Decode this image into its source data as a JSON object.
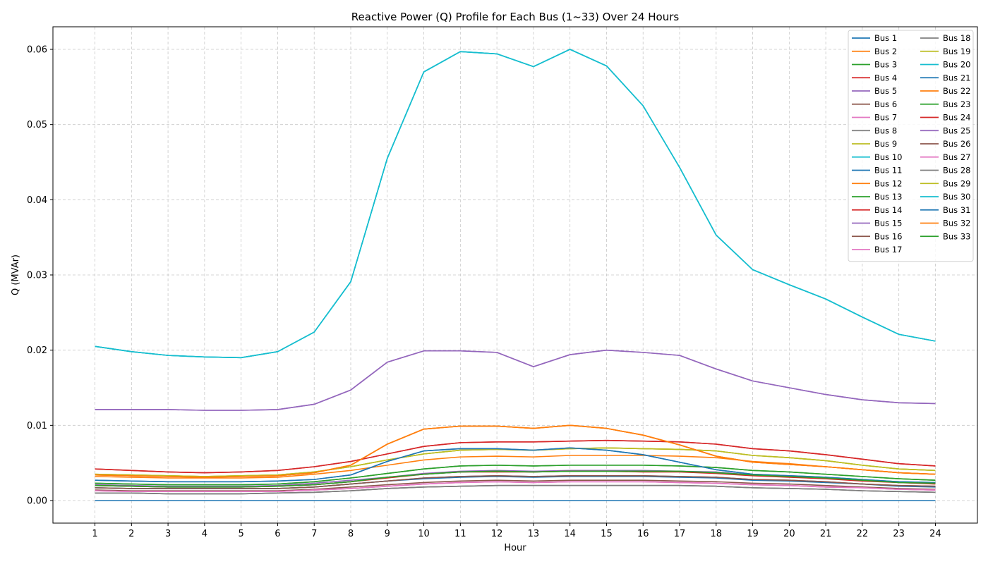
{
  "chart_data": {
    "type": "line",
    "title": "Reactive Power (Q) Profile for Each Bus (1~33) Over 24 Hours",
    "xlabel": "Hour",
    "ylabel": "Q (MVAr)",
    "x": [
      1,
      2,
      3,
      4,
      5,
      6,
      7,
      8,
      9,
      10,
      11,
      12,
      13,
      14,
      15,
      16,
      17,
      18,
      19,
      20,
      21,
      22,
      23,
      24
    ],
    "x_ticks": [
      "1",
      "2",
      "3",
      "4",
      "5",
      "6",
      "7",
      "8",
      "9",
      "10",
      "11",
      "12",
      "13",
      "14",
      "15",
      "16",
      "17",
      "18",
      "19",
      "20",
      "21",
      "22",
      "23",
      "24"
    ],
    "xlim": [
      -0.15,
      25.15
    ],
    "ylim": [
      -0.003,
      0.063
    ],
    "y_ticks": [
      0.0,
      0.01,
      0.02,
      0.03,
      0.04,
      0.05,
      0.06
    ],
    "y_tick_labels": [
      "0.00",
      "0.01",
      "0.02",
      "0.03",
      "0.04",
      "0.05",
      "0.06"
    ],
    "grid": true,
    "legend_position": "top-right",
    "legend_columns": 2,
    "series": [
      {
        "name": "Bus 1",
        "color": "#1f77b4",
        "values": [
          0,
          0,
          0,
          0,
          0,
          0,
          0,
          0,
          0,
          0,
          0,
          0,
          0,
          0,
          0,
          0,
          0,
          0,
          0,
          0,
          0,
          0,
          0,
          0
        ]
      },
      {
        "name": "Bus 2",
        "color": "#ff7f0e",
        "values": [
          0.0032,
          0.0031,
          0.003,
          0.003,
          0.003,
          0.0031,
          0.0035,
          0.004,
          0.0047,
          0.0054,
          0.0058,
          0.0059,
          0.0058,
          0.006,
          0.006,
          0.006,
          0.0059,
          0.0057,
          0.0052,
          0.0049,
          0.0045,
          0.0041,
          0.0037,
          0.0035
        ]
      },
      {
        "name": "Bus 3",
        "color": "#2ca02c",
        "values": [
          0.0023,
          0.0022,
          0.0021,
          0.0021,
          0.0021,
          0.0022,
          0.0025,
          0.003,
          0.0036,
          0.0042,
          0.0046,
          0.0047,
          0.0046,
          0.0047,
          0.0047,
          0.0047,
          0.0046,
          0.0044,
          0.004,
          0.0038,
          0.0035,
          0.0032,
          0.0029,
          0.0027
        ]
      },
      {
        "name": "Bus 4",
        "color": "#d62728",
        "values": [
          0.0042,
          0.004,
          0.0038,
          0.0037,
          0.0038,
          0.004,
          0.0045,
          0.0052,
          0.0062,
          0.0072,
          0.0077,
          0.0078,
          0.0078,
          0.0079,
          0.008,
          0.0079,
          0.0078,
          0.0075,
          0.0069,
          0.0066,
          0.0061,
          0.0055,
          0.0049,
          0.0046
        ]
      },
      {
        "name": "Bus 5",
        "color": "#9467bd",
        "values": [
          0.0021,
          0.002,
          0.0019,
          0.0019,
          0.0019,
          0.002,
          0.0023,
          0.0027,
          0.0031,
          0.0036,
          0.0039,
          0.004,
          0.0039,
          0.004,
          0.004,
          0.004,
          0.0039,
          0.0038,
          0.0034,
          0.0032,
          0.003,
          0.0027,
          0.0024,
          0.0023
        ]
      },
      {
        "name": "Bus 6",
        "color": "#8c564b",
        "values": [
          0.0014,
          0.0013,
          0.0013,
          0.0013,
          0.0013,
          0.0013,
          0.0015,
          0.0018,
          0.0021,
          0.0024,
          0.0026,
          0.0027,
          0.0026,
          0.0027,
          0.0027,
          0.0027,
          0.0026,
          0.0025,
          0.0023,
          0.0022,
          0.002,
          0.0018,
          0.0016,
          0.0015
        ]
      },
      {
        "name": "Bus 7",
        "color": "#e377c2",
        "values": [
          0.0013,
          0.0012,
          0.0012,
          0.0012,
          0.0012,
          0.0012,
          0.0014,
          0.0016,
          0.0019,
          0.0022,
          0.0024,
          0.0025,
          0.0024,
          0.0025,
          0.0025,
          0.0025,
          0.0024,
          0.0023,
          0.0021,
          0.002,
          0.0018,
          0.0017,
          0.0015,
          0.0014
        ]
      },
      {
        "name": "Bus 8",
        "color": "#7f7f7f",
        "values": [
          0.001,
          0.001,
          0.0009,
          0.0009,
          0.0009,
          0.001,
          0.0011,
          0.0013,
          0.0016,
          0.0018,
          0.0019,
          0.002,
          0.002,
          0.002,
          0.002,
          0.002,
          0.002,
          0.0019,
          0.0017,
          0.0016,
          0.0015,
          0.0013,
          0.0012,
          0.0011
        ]
      },
      {
        "name": "Bus 9",
        "color": "#bcbd22",
        "values": [
          0.0035,
          0.0034,
          0.0033,
          0.0032,
          0.0033,
          0.0034,
          0.0038,
          0.0045,
          0.0054,
          0.0062,
          0.0067,
          0.0068,
          0.0067,
          0.0069,
          0.007,
          0.0069,
          0.0068,
          0.0066,
          0.006,
          0.0057,
          0.0053,
          0.0047,
          0.0042,
          0.004
        ]
      },
      {
        "name": "Bus 10",
        "color": "#17becf",
        "values": [
          0.0205,
          0.0198,
          0.0193,
          0.0191,
          0.019,
          0.0198,
          0.0224,
          0.0291,
          0.0455,
          0.057,
          0.0597,
          0.0594,
          0.0577,
          0.06,
          0.0578,
          0.0525,
          0.0443,
          0.0353,
          0.0307,
          0.0287,
          0.0268,
          0.0244,
          0.0221,
          0.0212
        ]
      },
      {
        "name": "Bus 11",
        "color": "#1f77b4",
        "values": [
          0.0027,
          0.0026,
          0.0025,
          0.0025,
          0.0025,
          0.0026,
          0.0028,
          0.0034,
          0.0052,
          0.0066,
          0.0069,
          0.0069,
          0.0067,
          0.007,
          0.0067,
          0.0061,
          0.0051,
          0.0041,
          0.0035,
          0.0033,
          0.0031,
          0.0028,
          0.0025,
          0.0024
        ]
      },
      {
        "name": "Bus 12",
        "color": "#ff7f0e",
        "values": [
          0.0034,
          0.0033,
          0.0032,
          0.0031,
          0.0032,
          0.0033,
          0.0037,
          0.0047,
          0.0075,
          0.0095,
          0.0099,
          0.0099,
          0.0096,
          0.01,
          0.0096,
          0.0087,
          0.0074,
          0.0059,
          0.0051,
          0.0048,
          0.0045,
          0.0041,
          0.0037,
          0.0035
        ]
      },
      {
        "name": "Bus 13",
        "color": "#2ca02c",
        "values": [
          0.002,
          0.0019,
          0.0018,
          0.0018,
          0.0018,
          0.0019,
          0.0021,
          0.0025,
          0.0031,
          0.0035,
          0.0038,
          0.0039,
          0.0038,
          0.0039,
          0.0039,
          0.0039,
          0.0039,
          0.0037,
          0.0034,
          0.0032,
          0.003,
          0.0027,
          0.0024,
          0.0023
        ]
      },
      {
        "name": "Bus 14",
        "color": "#d62728",
        "values": [
          0.002,
          0.0019,
          0.0018,
          0.0018,
          0.0018,
          0.0019,
          0.0021,
          0.0025,
          0.003,
          0.0035,
          0.0038,
          0.0038,
          0.0038,
          0.0039,
          0.0039,
          0.0038,
          0.0038,
          0.0036,
          0.0033,
          0.0031,
          0.0029,
          0.0026,
          0.0024,
          0.0022
        ]
      },
      {
        "name": "Bus 15",
        "color": "#9467bd",
        "values": [
          0.0121,
          0.0121,
          0.0121,
          0.012,
          0.012,
          0.0121,
          0.0128,
          0.0147,
          0.0184,
          0.0199,
          0.0199,
          0.0197,
          0.0178,
          0.0194,
          0.02,
          0.0197,
          0.0193,
          0.0175,
          0.0159,
          0.015,
          0.0141,
          0.0134,
          0.013,
          0.0129
        ]
      },
      {
        "name": "Bus 16",
        "color": "#8c564b",
        "values": [
          0.0017,
          0.0016,
          0.0016,
          0.0016,
          0.0016,
          0.0016,
          0.0018,
          0.0022,
          0.0026,
          0.003,
          0.0032,
          0.0033,
          0.0032,
          0.0033,
          0.0033,
          0.0033,
          0.0032,
          0.0031,
          0.0028,
          0.0027,
          0.0025,
          0.0022,
          0.002,
          0.0019
        ]
      },
      {
        "name": "Bus 17",
        "color": "#e377c2",
        "values": [
          0.0013,
          0.0012,
          0.0012,
          0.0012,
          0.0012,
          0.0012,
          0.0014,
          0.0016,
          0.0019,
          0.0022,
          0.0024,
          0.0025,
          0.0024,
          0.0025,
          0.0025,
          0.0025,
          0.0024,
          0.0023,
          0.0021,
          0.002,
          0.0018,
          0.0017,
          0.0015,
          0.0014
        ]
      },
      {
        "name": "Bus 18",
        "color": "#7f7f7f",
        "values": [
          0.001,
          0.001,
          0.0009,
          0.0009,
          0.0009,
          0.001,
          0.0011,
          0.0013,
          0.0016,
          0.0018,
          0.0019,
          0.002,
          0.002,
          0.002,
          0.002,
          0.002,
          0.002,
          0.0019,
          0.0017,
          0.0016,
          0.0015,
          0.0013,
          0.0012,
          0.0011
        ]
      },
      {
        "name": "Bus 19",
        "color": "#bcbd22",
        "values": [
          0.0035,
          0.0034,
          0.0033,
          0.0032,
          0.0033,
          0.0034,
          0.0038,
          0.0045,
          0.0054,
          0.0062,
          0.0067,
          0.0068,
          0.0067,
          0.0069,
          0.007,
          0.0069,
          0.0068,
          0.0066,
          0.006,
          0.0057,
          0.0053,
          0.0047,
          0.0042,
          0.004
        ]
      },
      {
        "name": "Bus 20",
        "color": "#17becf",
        "values": [
          0.0205,
          0.0198,
          0.0193,
          0.0191,
          0.019,
          0.0198,
          0.0224,
          0.0291,
          0.0455,
          0.057,
          0.0597,
          0.0594,
          0.0577,
          0.06,
          0.0578,
          0.0525,
          0.0443,
          0.0353,
          0.0307,
          0.0287,
          0.0268,
          0.0244,
          0.0221,
          0.0212
        ]
      },
      {
        "name": "Bus 21",
        "color": "#1f77b4",
        "values": [
          0.0017,
          0.0016,
          0.0016,
          0.0016,
          0.0016,
          0.0016,
          0.0018,
          0.0022,
          0.0026,
          0.0029,
          0.0031,
          0.0032,
          0.0031,
          0.0032,
          0.0032,
          0.0032,
          0.0031,
          0.003,
          0.0027,
          0.0026,
          0.0024,
          0.0022,
          0.0019,
          0.0018
        ]
      },
      {
        "name": "Bus 22",
        "color": "#ff7f0e",
        "values": [
          0.0034,
          0.0033,
          0.0032,
          0.0031,
          0.0032,
          0.0033,
          0.0037,
          0.0047,
          0.0075,
          0.0095,
          0.0099,
          0.0099,
          0.0096,
          0.01,
          0.0096,
          0.0087,
          0.0074,
          0.0059,
          0.0051,
          0.0048,
          0.0045,
          0.0041,
          0.0037,
          0.0035
        ]
      },
      {
        "name": "Bus 23",
        "color": "#2ca02c",
        "values": [
          0.0023,
          0.0022,
          0.0021,
          0.0021,
          0.0021,
          0.0022,
          0.0025,
          0.003,
          0.0036,
          0.0042,
          0.0046,
          0.0047,
          0.0046,
          0.0047,
          0.0047,
          0.0047,
          0.0046,
          0.0044,
          0.004,
          0.0038,
          0.0035,
          0.0032,
          0.0029,
          0.0027
        ]
      },
      {
        "name": "Bus 24",
        "color": "#d62728",
        "values": [
          0.0042,
          0.004,
          0.0038,
          0.0037,
          0.0038,
          0.004,
          0.0045,
          0.0052,
          0.0062,
          0.0072,
          0.0077,
          0.0078,
          0.0078,
          0.0079,
          0.008,
          0.0079,
          0.0078,
          0.0075,
          0.0069,
          0.0066,
          0.0061,
          0.0055,
          0.0049,
          0.0046
        ]
      },
      {
        "name": "Bus 25",
        "color": "#9467bd",
        "values": [
          0.0121,
          0.0121,
          0.0121,
          0.012,
          0.012,
          0.0121,
          0.0128,
          0.0147,
          0.0184,
          0.0199,
          0.0199,
          0.0197,
          0.0178,
          0.0194,
          0.02,
          0.0197,
          0.0193,
          0.0175,
          0.0159,
          0.015,
          0.0141,
          0.0134,
          0.013,
          0.0129
        ]
      },
      {
        "name": "Bus 26",
        "color": "#8c564b",
        "values": [
          0.0017,
          0.0016,
          0.0016,
          0.0016,
          0.0016,
          0.0016,
          0.0018,
          0.0022,
          0.0026,
          0.003,
          0.0032,
          0.0033,
          0.0032,
          0.0033,
          0.0033,
          0.0033,
          0.0032,
          0.0031,
          0.0028,
          0.0027,
          0.0025,
          0.0022,
          0.002,
          0.0019
        ]
      },
      {
        "name": "Bus 27",
        "color": "#e377c2",
        "values": [
          0.0013,
          0.0012,
          0.0012,
          0.0012,
          0.0012,
          0.0012,
          0.0014,
          0.0016,
          0.0019,
          0.0022,
          0.0024,
          0.0025,
          0.0024,
          0.0025,
          0.0025,
          0.0025,
          0.0024,
          0.0023,
          0.0021,
          0.002,
          0.0018,
          0.0017,
          0.0015,
          0.0014
        ]
      },
      {
        "name": "Bus 28",
        "color": "#7f7f7f",
        "values": [
          0.001,
          0.001,
          0.0009,
          0.0009,
          0.0009,
          0.001,
          0.0011,
          0.0013,
          0.0016,
          0.0018,
          0.0019,
          0.002,
          0.002,
          0.002,
          0.002,
          0.002,
          0.002,
          0.0019,
          0.0017,
          0.0016,
          0.0015,
          0.0013,
          0.0012,
          0.0011
        ]
      },
      {
        "name": "Bus 29",
        "color": "#bcbd22",
        "values": [
          0.0035,
          0.0034,
          0.0033,
          0.0032,
          0.0033,
          0.0034,
          0.0038,
          0.0045,
          0.0054,
          0.0062,
          0.0067,
          0.0068,
          0.0067,
          0.0069,
          0.007,
          0.0069,
          0.0068,
          0.0066,
          0.006,
          0.0057,
          0.0053,
          0.0047,
          0.0042,
          0.004
        ]
      },
      {
        "name": "Bus 30",
        "color": "#17becf",
        "values": [
          0.0205,
          0.0198,
          0.0193,
          0.0191,
          0.019,
          0.0198,
          0.0224,
          0.0291,
          0.0455,
          0.057,
          0.0597,
          0.0594,
          0.0577,
          0.06,
          0.0578,
          0.0525,
          0.0443,
          0.0353,
          0.0307,
          0.0287,
          0.0268,
          0.0244,
          0.0221,
          0.0212
        ]
      },
      {
        "name": "Bus 31",
        "color": "#1f77b4",
        "values": [
          0.0027,
          0.0026,
          0.0025,
          0.0025,
          0.0025,
          0.0026,
          0.0028,
          0.0034,
          0.0052,
          0.0066,
          0.0069,
          0.0069,
          0.0067,
          0.007,
          0.0067,
          0.0061,
          0.0051,
          0.0041,
          0.0035,
          0.0033,
          0.0031,
          0.0028,
          0.0025,
          0.0024
        ]
      },
      {
        "name": "Bus 32",
        "color": "#ff7f0e",
        "values": [
          0.0034,
          0.0033,
          0.0032,
          0.0031,
          0.0032,
          0.0033,
          0.0037,
          0.0047,
          0.0075,
          0.0095,
          0.0099,
          0.0099,
          0.0096,
          0.01,
          0.0096,
          0.0087,
          0.0074,
          0.0059,
          0.0051,
          0.0048,
          0.0045,
          0.0041,
          0.0037,
          0.0035
        ]
      },
      {
        "name": "Bus 33",
        "color": "#2ca02c",
        "values": [
          0.002,
          0.0019,
          0.0018,
          0.0018,
          0.0018,
          0.0019,
          0.0021,
          0.0025,
          0.0031,
          0.0035,
          0.0038,
          0.0039,
          0.0038,
          0.0039,
          0.0039,
          0.0039,
          0.0039,
          0.0037,
          0.0034,
          0.0032,
          0.003,
          0.0027,
          0.0024,
          0.0023
        ]
      }
    ]
  }
}
